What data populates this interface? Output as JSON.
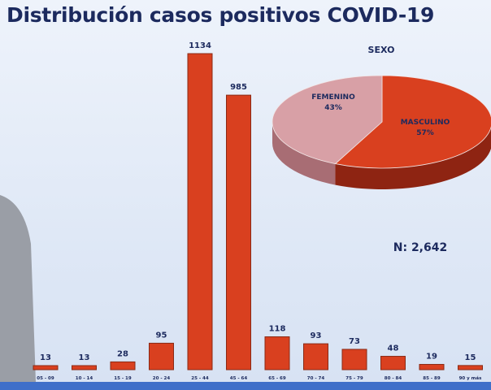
{
  "title": "Distribución casos positivos COVID-19",
  "n_label": "N: 2,642",
  "colors": {
    "bar": "#d9401f",
    "female": "#d8a0a6",
    "male": "#d9401f",
    "text": "#1c2a5e"
  },
  "chart_data": [
    {
      "type": "bar",
      "title": "Distribución casos positivos COVID-19",
      "categories": [
        "05 - 09",
        "10 - 14",
        "15 - 19",
        "20 - 24",
        "25 - 44",
        "45 - 64",
        "65 - 69",
        "70 - 74",
        "75 - 79",
        "80 - 84",
        "85 - 89",
        "90 y más"
      ],
      "values": [
        13,
        13,
        28,
        95,
        1134,
        985,
        118,
        93,
        73,
        48,
        19,
        15
      ],
      "xlabel": "",
      "ylabel": "",
      "ylim": [
        0,
        1134
      ],
      "grid": false
    },
    {
      "type": "pie",
      "title": "SEXO",
      "slices": [
        {
          "label": "MASCULINO",
          "value": 57,
          "pct": "57%"
        },
        {
          "label": "FEMENINO",
          "value": 43,
          "pct": "43%"
        }
      ]
    }
  ]
}
